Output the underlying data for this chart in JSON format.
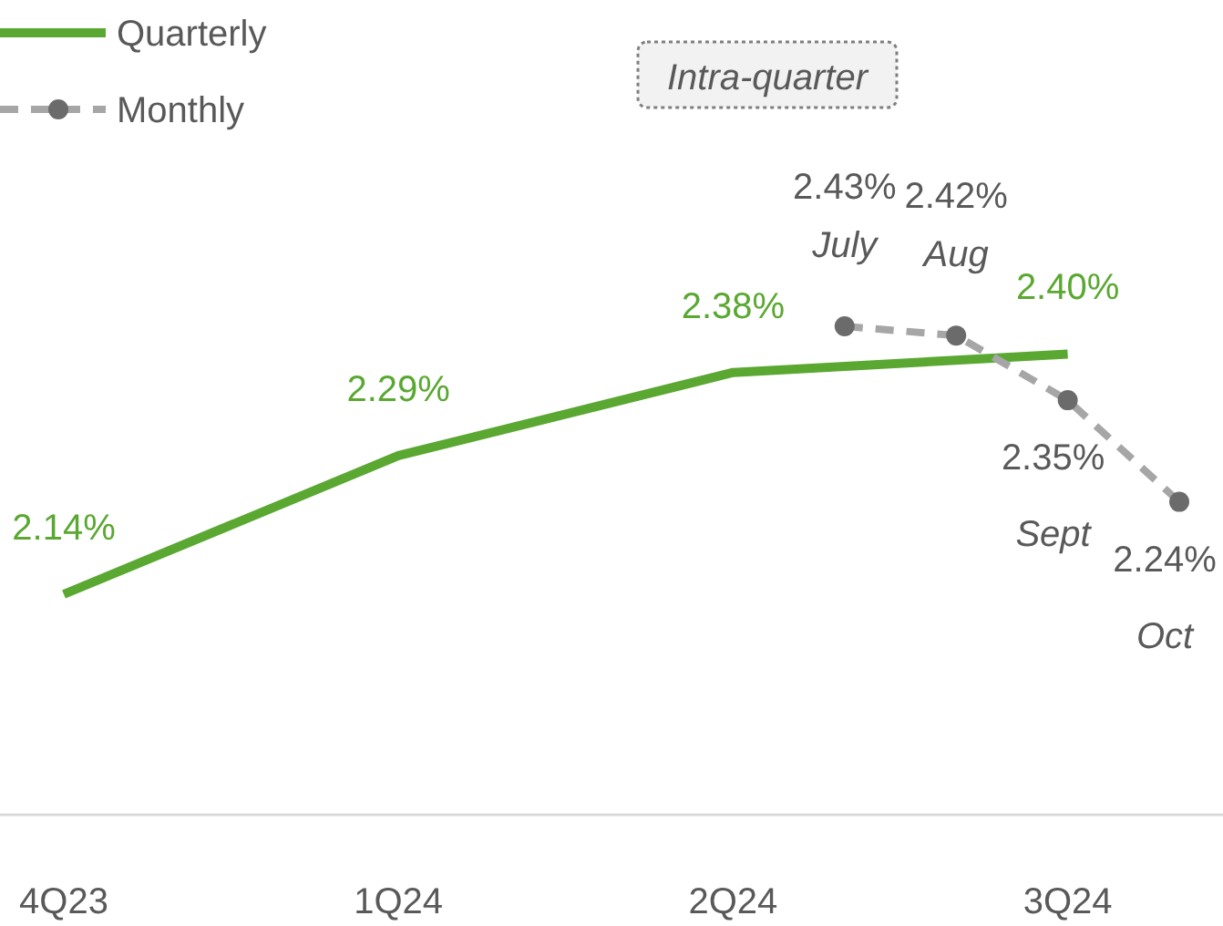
{
  "chart_data": {
    "type": "line",
    "categories": [
      "4Q23",
      null,
      null,
      "1Q24",
      null,
      null,
      "2Q24",
      null,
      null,
      "3Q24",
      null
    ],
    "legend": "top left",
    "series": [
      {
        "name": "Quarterly",
        "color": "#5aa832",
        "values": [
          2.14,
          null,
          null,
          2.29,
          null,
          null,
          2.38,
          null,
          null,
          2.4,
          null
        ],
        "value_labels": [
          "2.14%",
          null,
          null,
          "2.29%",
          null,
          null,
          "2.38%",
          null,
          null,
          "2.40%",
          null
        ],
        "marker": "none",
        "line_style": "solid"
      },
      {
        "name": "Monthly",
        "color": "#a6a6a6",
        "values": [
          null,
          null,
          null,
          null,
          null,
          null,
          null,
          2.43,
          2.42,
          2.35,
          2.24
        ],
        "value_labels": [
          null,
          null,
          null,
          null,
          null,
          null,
          null,
          "2.43%",
          "2.42%",
          "2.35%",
          "2.24%"
        ],
        "marker": "circle",
        "line_style": "dashed"
      }
    ],
    "annotations": [
      "Intra-quarter",
      "July",
      "Aug",
      "Sept",
      "Oct"
    ]
  }
}
